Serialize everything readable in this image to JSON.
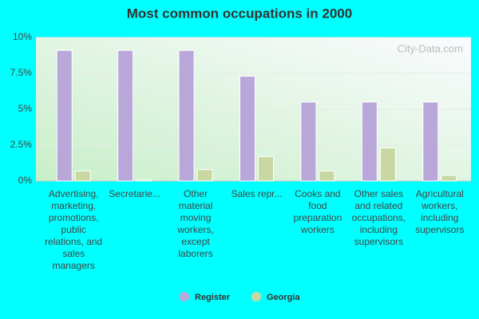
{
  "chart_data": {
    "type": "bar",
    "title": "Most common occupations in 2000",
    "watermark": "City-Data.com",
    "categories": [
      "Advertising, marketing, promotions, public relations, and sales managers",
      "Secretarie...",
      "Other material moving workers, except laborers",
      "Sales repr...",
      "Cooks and food preparation workers",
      "Other sales and related occupations, including supervisors",
      "Agricultural workers, including supervisors"
    ],
    "series": [
      {
        "name": "Register",
        "color": "#b9a7da",
        "values": [
          9.1,
          9.1,
          9.1,
          7.3,
          5.5,
          5.5,
          5.5
        ]
      },
      {
        "name": "Georgia",
        "color": "#c9d8a3",
        "values": [
          0.7,
          0.1,
          0.8,
          1.7,
          0.7,
          2.3,
          0.4
        ]
      }
    ],
    "ylim": [
      0,
      10
    ],
    "yticks": [
      {
        "value": 0,
        "label": "0%"
      },
      {
        "value": 2.5,
        "label": "2.5%"
      },
      {
        "value": 5,
        "label": "5%"
      },
      {
        "value": 7.5,
        "label": "7.5%"
      },
      {
        "value": 10,
        "label": "10%"
      }
    ],
    "grid": true,
    "legend": "bottom"
  }
}
